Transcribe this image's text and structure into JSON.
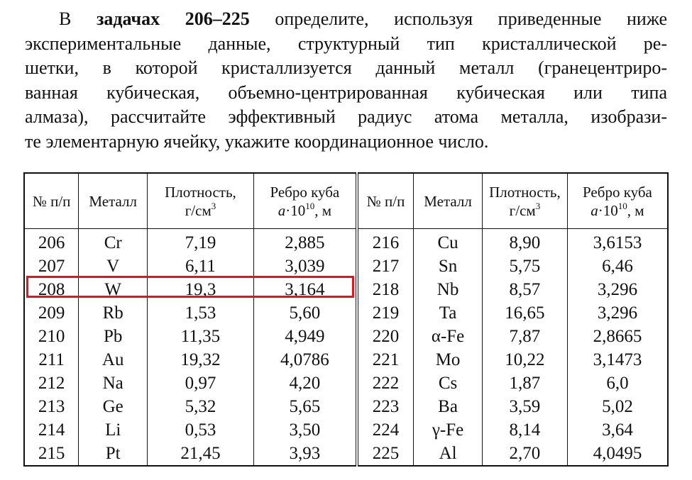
{
  "paragraph": {
    "first_line": {
      "lead": "В",
      "bold": "задачах 206–225",
      "rest": "определите, используя приведенные ниже"
    },
    "lines": [
      "экспериментальные данные, структурный тип кристаллической ре-",
      "шетки, в которой кристаллизуется данный металл (гранецентриро-",
      "ванная кубическая, объемно-центрированная кубическая или типа",
      "алмаза), рассчитайте эффективный радиус атома металла, изобрази-",
      "те элементарную ячейку, укажите координационное число."
    ]
  },
  "table": {
    "header": [
      {
        "text": "№ п/п"
      },
      {
        "text": "Металл"
      },
      {
        "line1": "Плотность,",
        "unit": "г/см",
        "sup": "3"
      },
      {
        "line1": "Ребро куба",
        "var": "a",
        "mult": "·10",
        "sup": "10",
        "unit": ", м"
      }
    ],
    "rows": [
      [
        "206",
        "Cr",
        "7,19",
        "2,885",
        "216",
        "Cu",
        "8,90",
        "3,6153"
      ],
      [
        "207",
        "V",
        "6,11",
        "3,039",
        "217",
        "Sn",
        "5,75",
        "6,46"
      ],
      [
        "208",
        "W",
        "19,3",
        "3,164",
        "218",
        "Nb",
        "8,57",
        "3,296"
      ],
      [
        "209",
        "Rb",
        "1,53",
        "5,60",
        "219",
        "Ta",
        "16,65",
        "3,296"
      ],
      [
        "210",
        "Pb",
        "11,35",
        "4,949",
        "220",
        "α-Fe",
        "7,87",
        "2,8665"
      ],
      [
        "211",
        "Au",
        "19,32",
        "4,0786",
        "221",
        "Mo",
        "10,22",
        "3,1473"
      ],
      [
        "212",
        "Na",
        "0,97",
        "4,20",
        "222",
        "Cs",
        "1,87",
        "6,0"
      ],
      [
        "213",
        "Ge",
        "5,32",
        "5,65",
        "223",
        "Ba",
        "3,59",
        "5,02"
      ],
      [
        "214",
        "Li",
        "0,53",
        "3,50",
        "224",
        "γ-Fe",
        "8,14",
        "3,64"
      ],
      [
        "215",
        "Pt",
        "21,45",
        "3,93",
        "225",
        "Al",
        "2,70",
        "4,0495"
      ]
    ]
  }
}
